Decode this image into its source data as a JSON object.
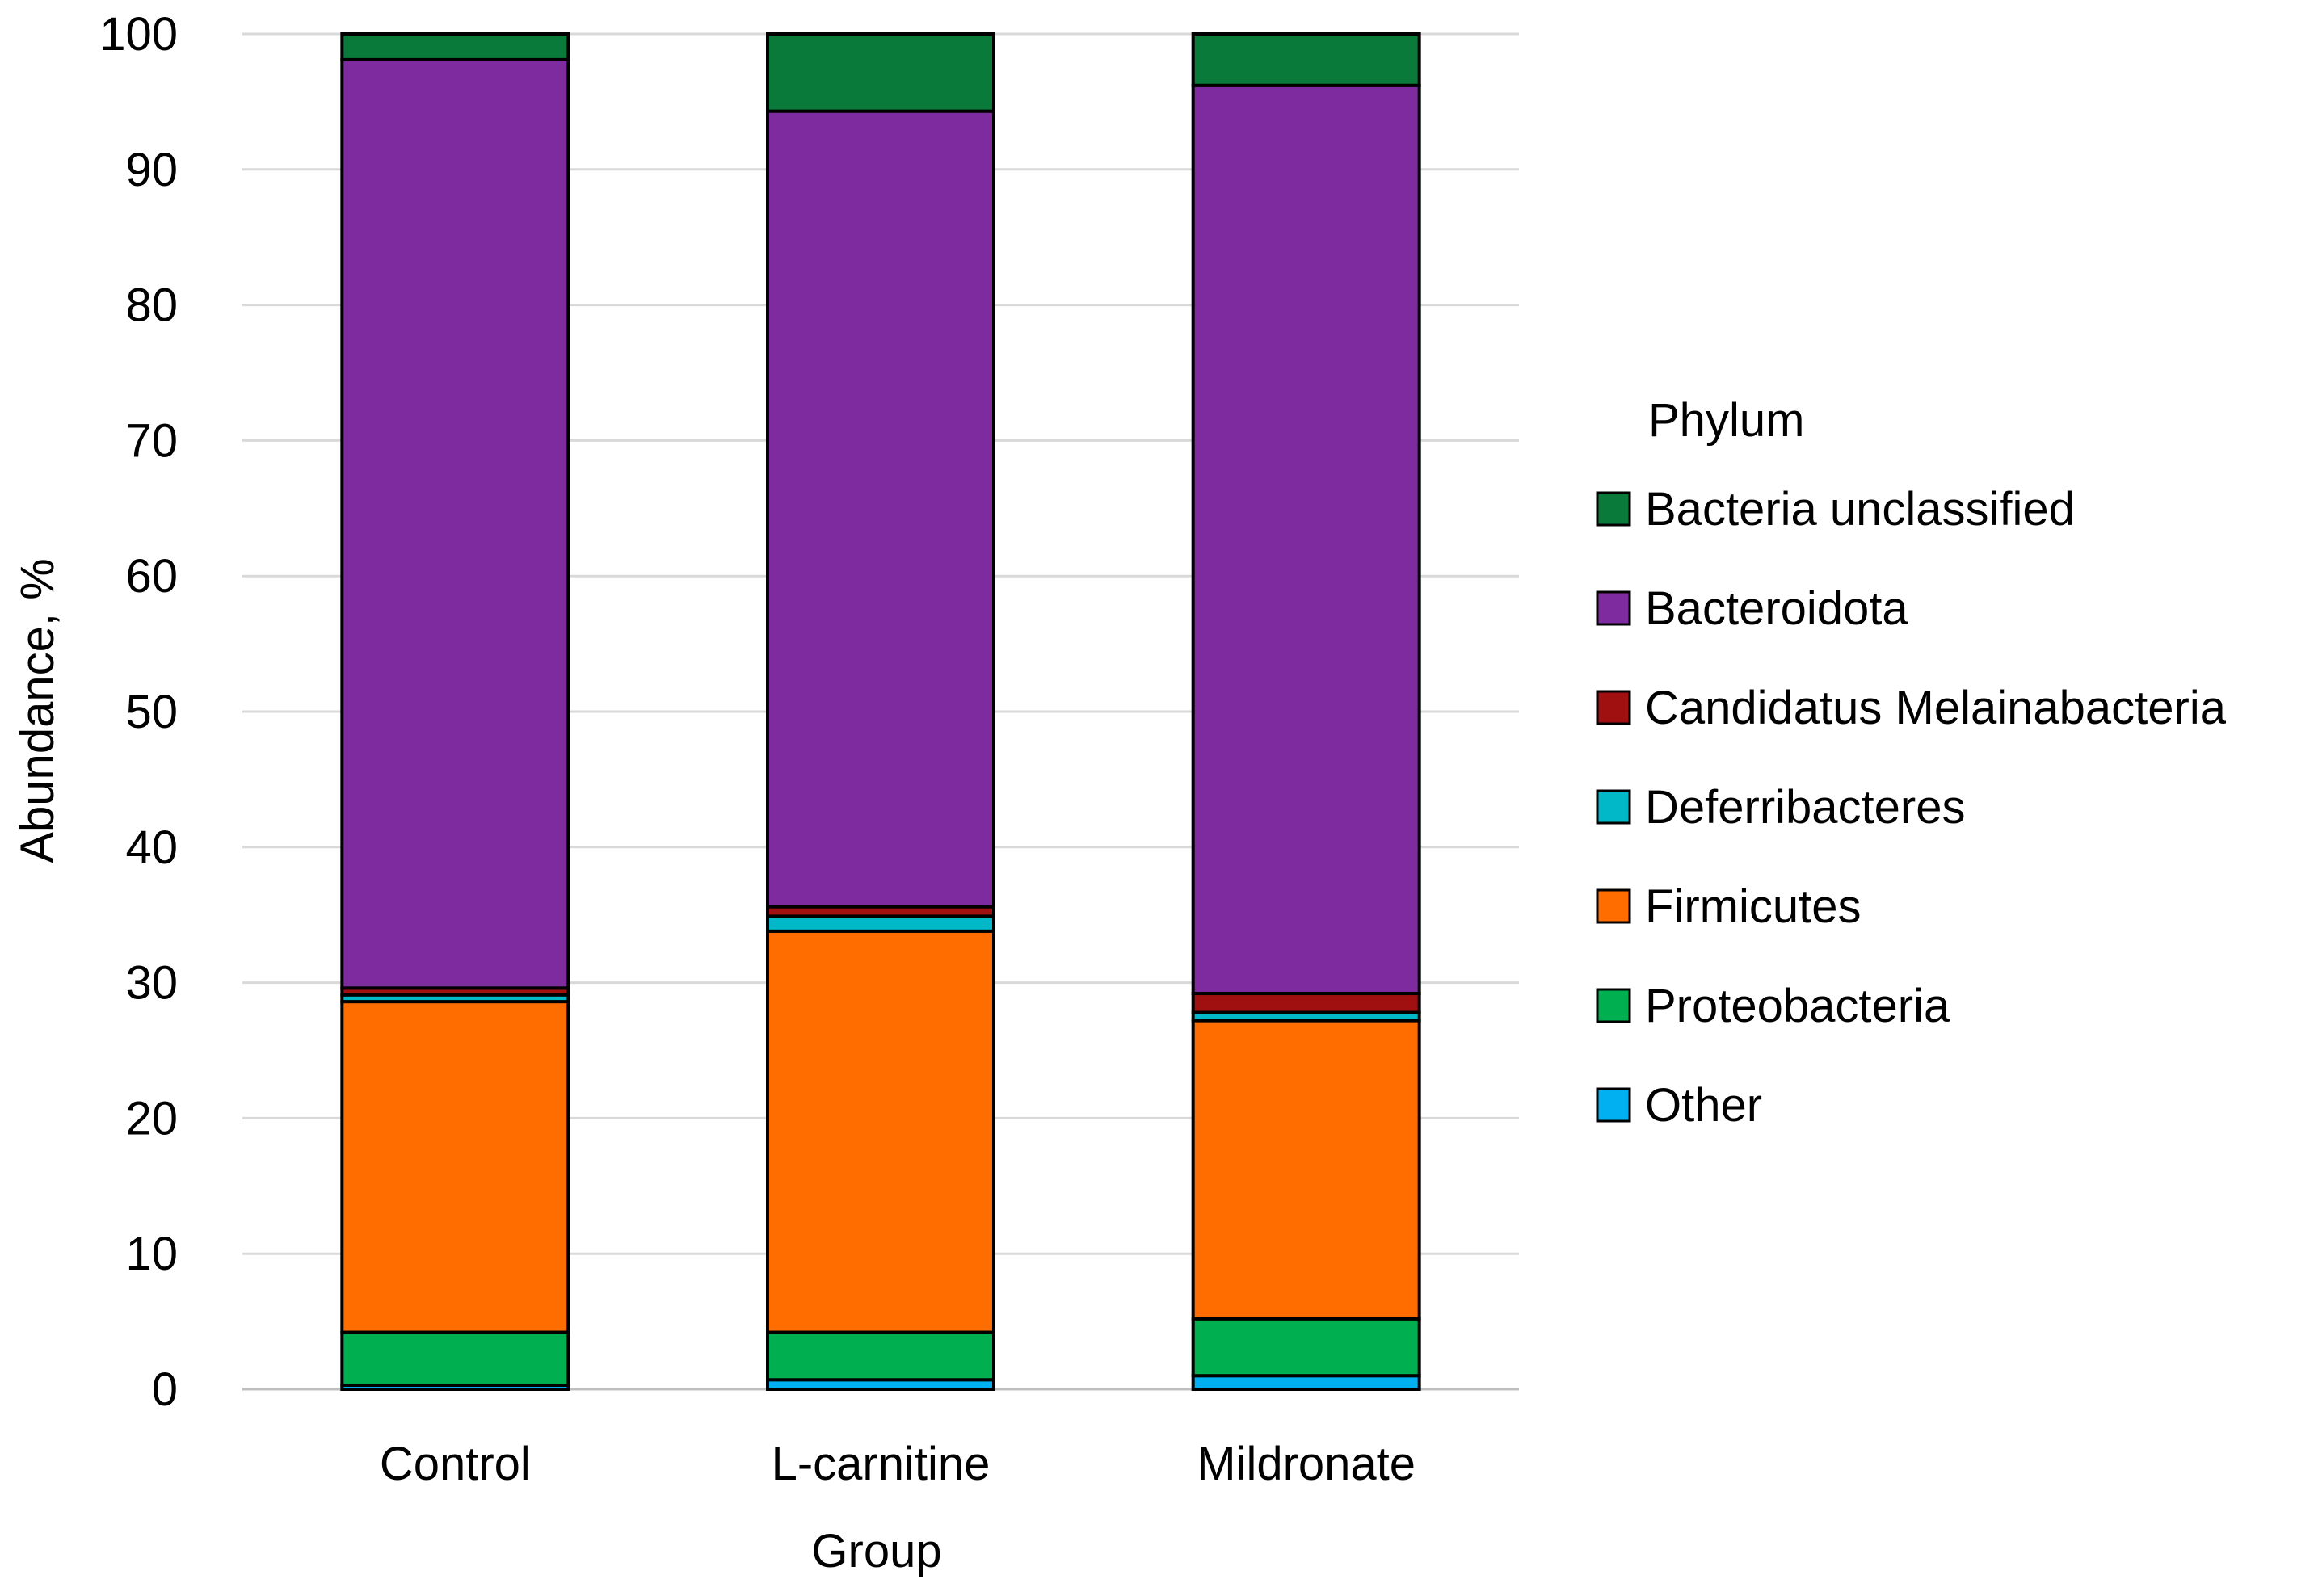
{
  "chart_data": {
    "type": "bar",
    "stacked": true,
    "title": "",
    "xlabel": "Group",
    "ylabel": "Abundance, %",
    "ylim": [
      0,
      100
    ],
    "yticks": [
      0,
      10,
      20,
      30,
      40,
      50,
      60,
      70,
      80,
      90,
      100
    ],
    "grid": true,
    "categories": [
      "Control",
      "L-carnitine",
      "Mildronate"
    ],
    "legend": {
      "title": "Phylum",
      "placement": "right"
    },
    "series": [
      {
        "name": "Other",
        "color": "#00b0f0",
        "values": [
          0.3,
          0.7,
          1.0
        ]
      },
      {
        "name": "Proteobacteria",
        "color": "#00b050",
        "values": [
          3.9,
          3.5,
          4.2
        ]
      },
      {
        "name": "Firmicutes",
        "color": "#ff6d00",
        "values": [
          24.4,
          29.6,
          22.0
        ]
      },
      {
        "name": "Deferribacteres",
        "color": "#00b8c8",
        "values": [
          0.5,
          1.1,
          0.6
        ]
      },
      {
        "name": "Candidatus Melainabacteria",
        "color": "#a01010",
        "values": [
          0.5,
          0.7,
          1.4
        ]
      },
      {
        "name": "Bacteroidota",
        "color": "#7f2ba0",
        "values": [
          68.5,
          58.7,
          67.0
        ]
      },
      {
        "name": "Bacteria unclassified",
        "color": "#0a7a3a",
        "values": [
          1.9,
          5.7,
          3.8
        ]
      }
    ],
    "legend_order": [
      "Bacteria unclassified",
      "Bacteroidota",
      "Candidatus Melainabacteria",
      "Deferribacteres",
      "Firmicutes",
      "Proteobacteria",
      "Other"
    ]
  }
}
